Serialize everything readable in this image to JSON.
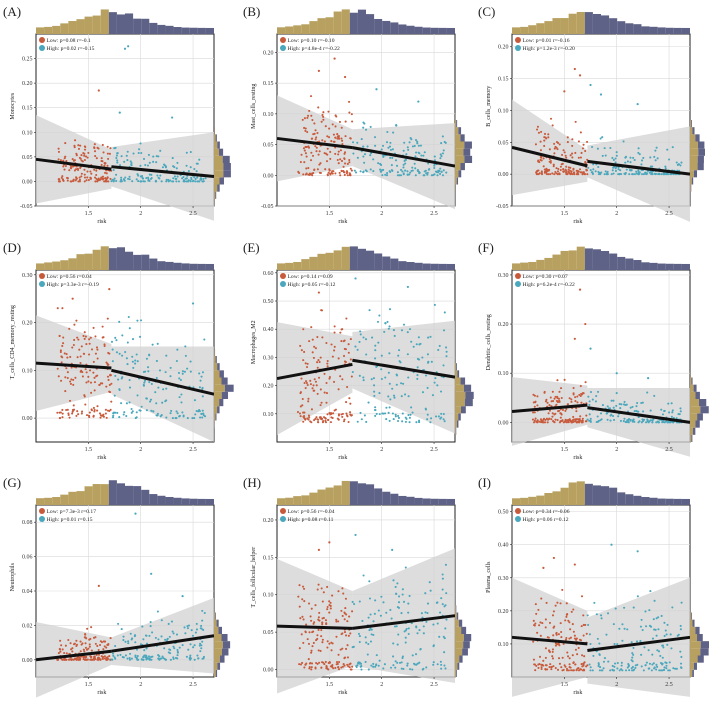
{
  "colors": {
    "low": "#c85a3c",
    "high": "#4aa7bc",
    "hist_low": "#b8a160",
    "hist_high": "#5f6287",
    "band": "#d2d2d2",
    "line": "#111111",
    "grid": "#d9d9d9"
  },
  "chart_data": [
    {
      "type": "scatter",
      "panel_label": "(A)",
      "ylabel": "Monocytes",
      "xlabel": "risk",
      "xlim": [
        1.0,
        2.7
      ],
      "ylim": [
        -0.05,
        0.3
      ],
      "xticks": [
        1.5,
        2.0,
        2.5
      ],
      "yticks": [
        -0.05,
        0.0,
        0.05,
        0.1,
        0.15,
        0.2,
        0.25
      ],
      "split": 1.72,
      "legend": [
        "Low: p=0.08 r=-0.1",
        "High: p=0.02 r=-0.15"
      ],
      "low_fit": {
        "x": [
          1.0,
          1.72
        ],
        "y": [
          0.045,
          0.025
        ]
      },
      "high_fit": {
        "x": [
          1.72,
          2.7
        ],
        "y": [
          0.03,
          0.01
        ]
      },
      "band_half_width": [
        0.04,
        0.09
      ],
      "low_range": [
        0.0,
        0.11
      ],
      "high_range": [
        0.0,
        0.1
      ],
      "outliers": [
        [
          1.6,
          0.185
        ],
        [
          1.85,
          0.27
        ],
        [
          1.88,
          0.275
        ],
        [
          1.8,
          0.14
        ],
        [
          2.3,
          0.13
        ]
      ]
    },
    {
      "type": "scatter",
      "panel_label": "(B)",
      "ylabel": "Mast_cells_resting",
      "xlabel": "risk",
      "xlim": [
        1.0,
        2.7
      ],
      "ylim": [
        -0.05,
        0.23
      ],
      "xticks": [
        1.5,
        2.0,
        2.5
      ],
      "yticks": [
        -0.05,
        0.0,
        0.05,
        0.1,
        0.15,
        0.2
      ],
      "split": 1.72,
      "legend": [
        "Low: p=0.10 r=-0.10",
        "High: p=4.8e-4 r=-0.22"
      ],
      "low_fit": {
        "x": [
          1.0,
          1.72
        ],
        "y": [
          0.06,
          0.045
        ]
      },
      "high_fit": {
        "x": [
          1.72,
          2.7
        ],
        "y": [
          0.045,
          0.015
        ]
      },
      "band_half_width": [
        0.03,
        0.07
      ],
      "low_range": [
        0.0,
        0.13
      ],
      "high_range": [
        0.0,
        0.11
      ],
      "outliers": [
        [
          1.55,
          0.19
        ],
        [
          1.4,
          0.17
        ],
        [
          1.65,
          0.16
        ],
        [
          1.95,
          0.14
        ],
        [
          2.35,
          0.12
        ]
      ]
    },
    {
      "type": "scatter",
      "panel_label": "(C)",
      "ylabel": "B_cells_memory",
      "xlabel": "risk",
      "xlim": [
        1.0,
        2.7
      ],
      "ylim": [
        -0.05,
        0.22
      ],
      "xticks": [
        1.5,
        2.0,
        2.5
      ],
      "yticks": [
        -0.05,
        0.0,
        0.05,
        0.1,
        0.15,
        0.2
      ],
      "split": 1.72,
      "legend": [
        "Low: p=0.01 r=-0.16",
        "High: p=1.2e-3 r=-0.20"
      ],
      "low_fit": {
        "x": [
          1.0,
          1.72
        ],
        "y": [
          0.042,
          0.013
        ]
      },
      "high_fit": {
        "x": [
          1.72,
          2.7
        ],
        "y": [
          0.02,
          0.0
        ]
      },
      "band_half_width": [
        0.025,
        0.075
      ],
      "low_range": [
        0.0,
        0.11
      ],
      "high_range": [
        0.0,
        0.08
      ],
      "outliers": [
        [
          1.6,
          0.165
        ],
        [
          1.65,
          0.155
        ],
        [
          1.75,
          0.14
        ],
        [
          1.5,
          0.13
        ],
        [
          1.85,
          0.125
        ],
        [
          2.2,
          0.11
        ]
      ]
    },
    {
      "type": "scatter",
      "panel_label": "(D)",
      "ylabel": "T_cells_CD4_memory_resting",
      "xlabel": "risk",
      "xlim": [
        1.0,
        2.7
      ],
      "ylim": [
        -0.05,
        0.31
      ],
      "xticks": [
        1.5,
        2.0,
        2.5
      ],
      "yticks": [
        0.0,
        0.1,
        0.2,
        0.3
      ],
      "split": 1.72,
      "legend": [
        "Low: p=0.56 r=0.04",
        "High: p=3.3e-3 r=-0.19"
      ],
      "low_fit": {
        "x": [
          1.0,
          1.72
        ],
        "y": [
          0.115,
          0.105
        ]
      },
      "high_fit": {
        "x": [
          1.72,
          2.7
        ],
        "y": [
          0.1,
          0.05
        ]
      },
      "band_half_width": [
        0.05,
        0.1
      ],
      "low_range": [
        0.0,
        0.23
      ],
      "high_range": [
        0.0,
        0.22
      ],
      "outliers": [
        [
          1.35,
          0.25
        ],
        [
          1.7,
          0.27
        ],
        [
          2.5,
          0.24
        ]
      ]
    },
    {
      "type": "scatter",
      "panel_label": "(E)",
      "ylabel": "Macrophages_M2",
      "xlabel": "risk",
      "xlim": [
        1.0,
        2.7
      ],
      "ylim": [
        0.0,
        0.61
      ],
      "xticks": [
        1.5,
        2.0,
        2.5
      ],
      "yticks": [
        0.1,
        0.2,
        0.3,
        0.4,
        0.5,
        0.6
      ],
      "split": 1.72,
      "legend": [
        "Low: p=0.14 r=0.09",
        "High: p=0.05 r=-0.12"
      ],
      "low_fit": {
        "x": [
          1.0,
          1.72
        ],
        "y": [
          0.225,
          0.275
        ]
      },
      "high_fit": {
        "x": [
          1.72,
          2.7
        ],
        "y": [
          0.29,
          0.23
        ]
      },
      "band_half_width": [
        0.1,
        0.2
      ],
      "low_range": [
        0.07,
        0.5
      ],
      "high_range": [
        0.07,
        0.52
      ],
      "outliers": [
        [
          1.75,
          0.58
        ],
        [
          2.25,
          0.55
        ],
        [
          1.4,
          0.53
        ]
      ]
    },
    {
      "type": "scatter",
      "panel_label": "(F)",
      "ylabel": "Dendritic_cells_resting",
      "xlabel": "risk",
      "xlim": [
        1.0,
        2.7
      ],
      "ylim": [
        -0.04,
        0.31
      ],
      "xticks": [
        1.5,
        2.0,
        2.5
      ],
      "yticks": [
        0.0,
        0.1,
        0.2,
        0.3
      ],
      "split": 1.72,
      "legend": [
        "Low: p=0.30 r=0.07",
        "High: p=6.2e-4 r=-0.22"
      ],
      "low_fit": {
        "x": [
          1.0,
          1.72
        ],
        "y": [
          0.022,
          0.035
        ]
      },
      "high_fit": {
        "x": [
          1.72,
          2.7
        ],
        "y": [
          0.03,
          0.0
        ]
      },
      "band_half_width": [
        0.04,
        0.07
      ],
      "low_range": [
        0.0,
        0.1
      ],
      "high_range": [
        0.0,
        0.08
      ],
      "outliers": [
        [
          1.65,
          0.27
        ],
        [
          1.7,
          0.2
        ],
        [
          1.75,
          0.15
        ],
        [
          1.6,
          0.17
        ],
        [
          2.0,
          0.1
        ],
        [
          2.3,
          0.09
        ]
      ]
    },
    {
      "type": "scatter",
      "panel_label": "(G)",
      "ylabel": "Neutrophils",
      "xlabel": "risk",
      "xlim": [
        1.0,
        2.7
      ],
      "ylim": [
        -0.01,
        0.09
      ],
      "xticks": [
        1.5,
        2.0,
        2.5
      ],
      "yticks": [
        0.0,
        0.02,
        0.04,
        0.06,
        0.08
      ],
      "split": 1.72,
      "legend": [
        "Low: p=7.3e-3 r=0.17",
        "High: p=0.01 r=0.15"
      ],
      "low_fit": {
        "x": [
          1.0,
          1.72
        ],
        "y": [
          0.0,
          0.005
        ]
      },
      "high_fit": {
        "x": [
          1.72,
          2.7
        ],
        "y": [
          0.005,
          0.014
        ]
      },
      "band_half_width": [
        0.008,
        0.022
      ],
      "low_range": [
        0.0,
        0.028
      ],
      "high_range": [
        0.0,
        0.032
      ],
      "outliers": [
        [
          1.95,
          0.085
        ],
        [
          1.6,
          0.043
        ],
        [
          2.1,
          0.05
        ],
        [
          2.4,
          0.037
        ]
      ]
    },
    {
      "type": "scatter",
      "panel_label": "(H)",
      "ylabel": "T_cells_follicular_helper",
      "xlabel": "risk",
      "xlim": [
        1.0,
        2.7
      ],
      "ylim": [
        -0.01,
        0.22
      ],
      "xticks": [
        1.5,
        2.0,
        2.5
      ],
      "yticks": [
        0.0,
        0.05,
        0.1,
        0.15,
        0.2
      ],
      "split": 1.72,
      "legend": [
        "Low: p=0.56 r=-0.04",
        "High: p=0.08 r=0.11"
      ],
      "low_fit": {
        "x": [
          1.0,
          1.72
        ],
        "y": [
          0.058,
          0.055
        ]
      },
      "high_fit": {
        "x": [
          1.72,
          2.7
        ],
        "y": [
          0.055,
          0.072
        ]
      },
      "band_half_width": [
        0.05,
        0.09
      ],
      "low_range": [
        0.0,
        0.13
      ],
      "high_range": [
        0.0,
        0.14
      ],
      "outliers": [
        [
          1.5,
          0.17
        ],
        [
          1.75,
          0.18
        ],
        [
          2.1,
          0.16
        ],
        [
          1.4,
          0.16
        ]
      ]
    },
    {
      "type": "scatter",
      "panel_label": "(I)",
      "ylabel": "Plasma_cells",
      "xlabel": "risk",
      "xlim": [
        1.0,
        2.7
      ],
      "ylim": [
        0.0,
        0.52
      ],
      "xticks": [
        1.5,
        2.0,
        2.5
      ],
      "yticks": [
        0.1,
        0.2,
        0.3,
        0.4,
        0.5
      ],
      "split": 1.72,
      "legend": [
        "Low: p=0.34 r=-0.06",
        "High: p=0.06 r=0.12"
      ],
      "low_fit": {
        "x": [
          1.0,
          1.72
        ],
        "y": [
          0.12,
          0.1
        ]
      },
      "high_fit": {
        "x": [
          1.72,
          2.7
        ],
        "y": [
          0.08,
          0.12
        ]
      },
      "band_half_width": [
        0.1,
        0.18
      ],
      "low_range": [
        0.02,
        0.3
      ],
      "high_range": [
        0.02,
        0.32
      ],
      "outliers": [
        [
          1.4,
          0.36
        ],
        [
          1.6,
          0.34
        ],
        [
          1.95,
          0.4
        ],
        [
          2.2,
          0.38
        ],
        [
          1.3,
          0.33
        ]
      ]
    }
  ]
}
